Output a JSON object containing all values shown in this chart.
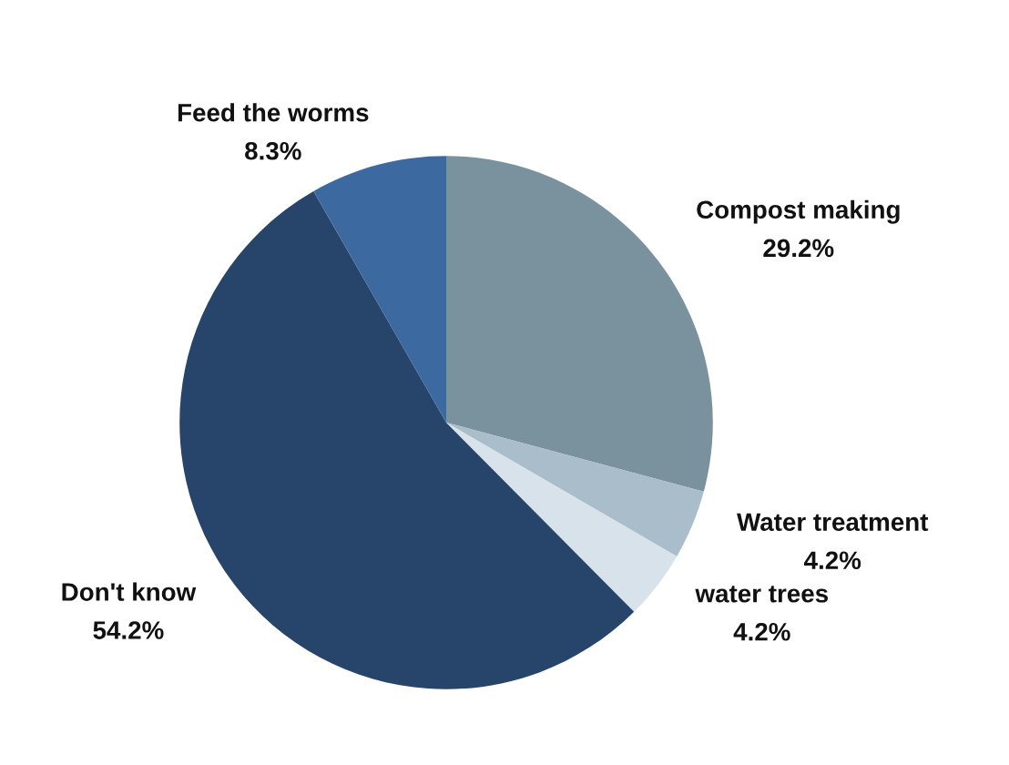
{
  "chart_data": {
    "type": "pie",
    "categories": [
      "Compost making",
      "Water treatment",
      "water trees",
      "Don't know",
      "Feed the worms"
    ],
    "values": [
      29.2,
      4.2,
      4.2,
      54.2,
      8.3
    ],
    "colors": [
      "#7a929e",
      "#a9bdcb",
      "#d8e2ea",
      "#27446a",
      "#3c6aa0"
    ],
    "value_labels": [
      "29.2%",
      "4.2%",
      "4.2%",
      "54.2%",
      "8.3%"
    ]
  }
}
